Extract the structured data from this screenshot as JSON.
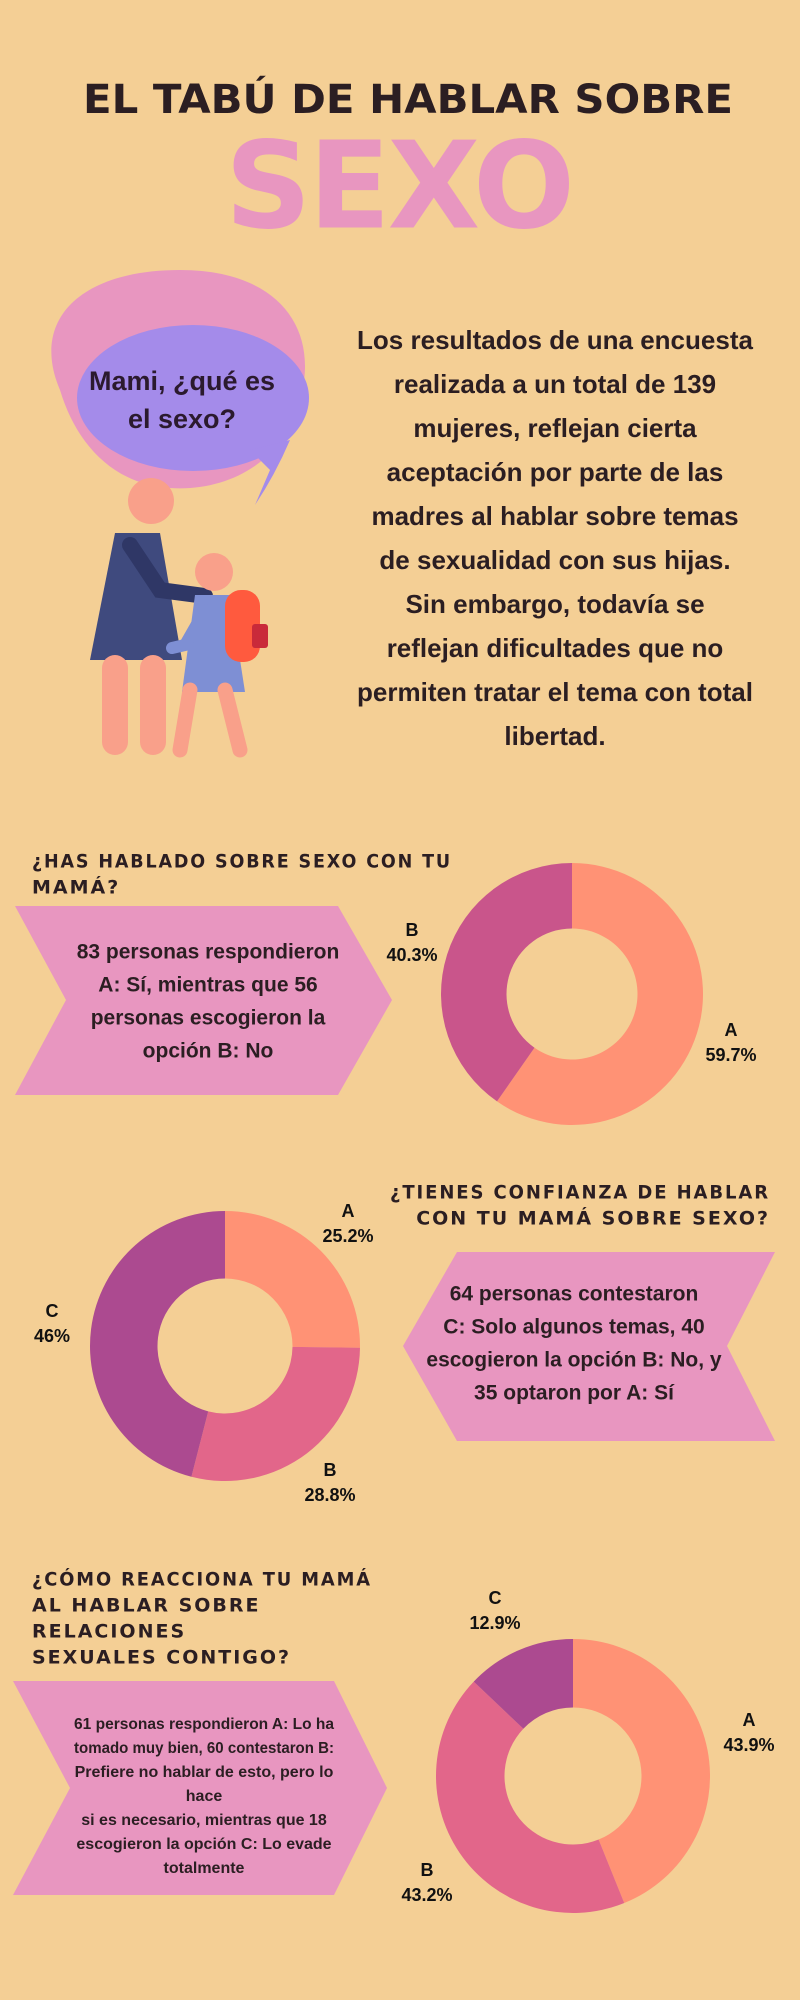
{
  "header": {
    "title": "EL TABÚ DE HABLAR SOBRE",
    "highlight": "SEXO"
  },
  "bubble": {
    "lines": [
      "Mami, ¿qué es",
      "el sexo?"
    ]
  },
  "intro": {
    "lines": [
      "Los resultados de una encuesta",
      "realizada a un total de 139",
      "mujeres, reflejan cierta",
      "aceptación por parte de las",
      "madres al hablar sobre temas",
      "de sexualidad con sus hijas.",
      "Sin embargo, todavía se",
      "reflejan dificultades que no",
      "permiten tratar el tema con total",
      "libertad."
    ]
  },
  "sections": [
    {
      "heading": [
        "¿HAS HABLADO SOBRE SEXO CON TU",
        "MAMÁ?"
      ],
      "text": [
        "83 personas respondieron",
        "A: Sí, mientras que 56",
        "personas escogieron la",
        "opción B: No"
      ]
    },
    {
      "heading": [
        "¿TIENES CONFIANZA DE HABLAR",
        "CON TU MAMÁ SOBRE SEXO?"
      ],
      "text": [
        "64 personas contestaron",
        "C: Solo algunos temas, 40",
        "escogieron la opción B: No, y",
        "35 optaron por A: Sí"
      ]
    },
    {
      "heading": [
        "¿CÓMO REACCIONA TU MAMÁ",
        "AL HABLAR  SOBRE",
        "RELACIONES",
        "SEXUALES CONTIGO?"
      ],
      "text": [
        "61 personas respondieron A: Lo ha",
        "tomado muy bien, 60 contestaron B:",
        "Prefiere no hablar de esto, pero lo",
        "hace",
        "si es necesario, mientras que 18",
        "escogieron la opción C: Lo evade",
        "totalmente"
      ]
    }
  ],
  "chart_data": [
    {
      "type": "pie",
      "donut": true,
      "categories": [
        "A",
        "B"
      ],
      "values": [
        59.7,
        40.3
      ],
      "value_labels": [
        "59.7%",
        "40.3%"
      ],
      "colors": [
        "#FF9275",
        "#C9558B"
      ]
    },
    {
      "type": "pie",
      "donut": true,
      "categories": [
        "A",
        "B",
        "C"
      ],
      "values": [
        25.2,
        28.8,
        46
      ],
      "value_labels": [
        "25.2%",
        "28.8%",
        "46%"
      ],
      "colors": [
        "#FF9275",
        "#E2668A",
        "#AC4A90"
      ]
    },
    {
      "type": "pie",
      "donut": true,
      "categories": [
        "A",
        "B",
        "C"
      ],
      "values": [
        43.9,
        43.2,
        12.9
      ],
      "value_labels": [
        "43.9%",
        "43.2%",
        "12.9%"
      ],
      "colors": [
        "#FF9275",
        "#E2668A",
        "#AC4A90"
      ]
    }
  ]
}
